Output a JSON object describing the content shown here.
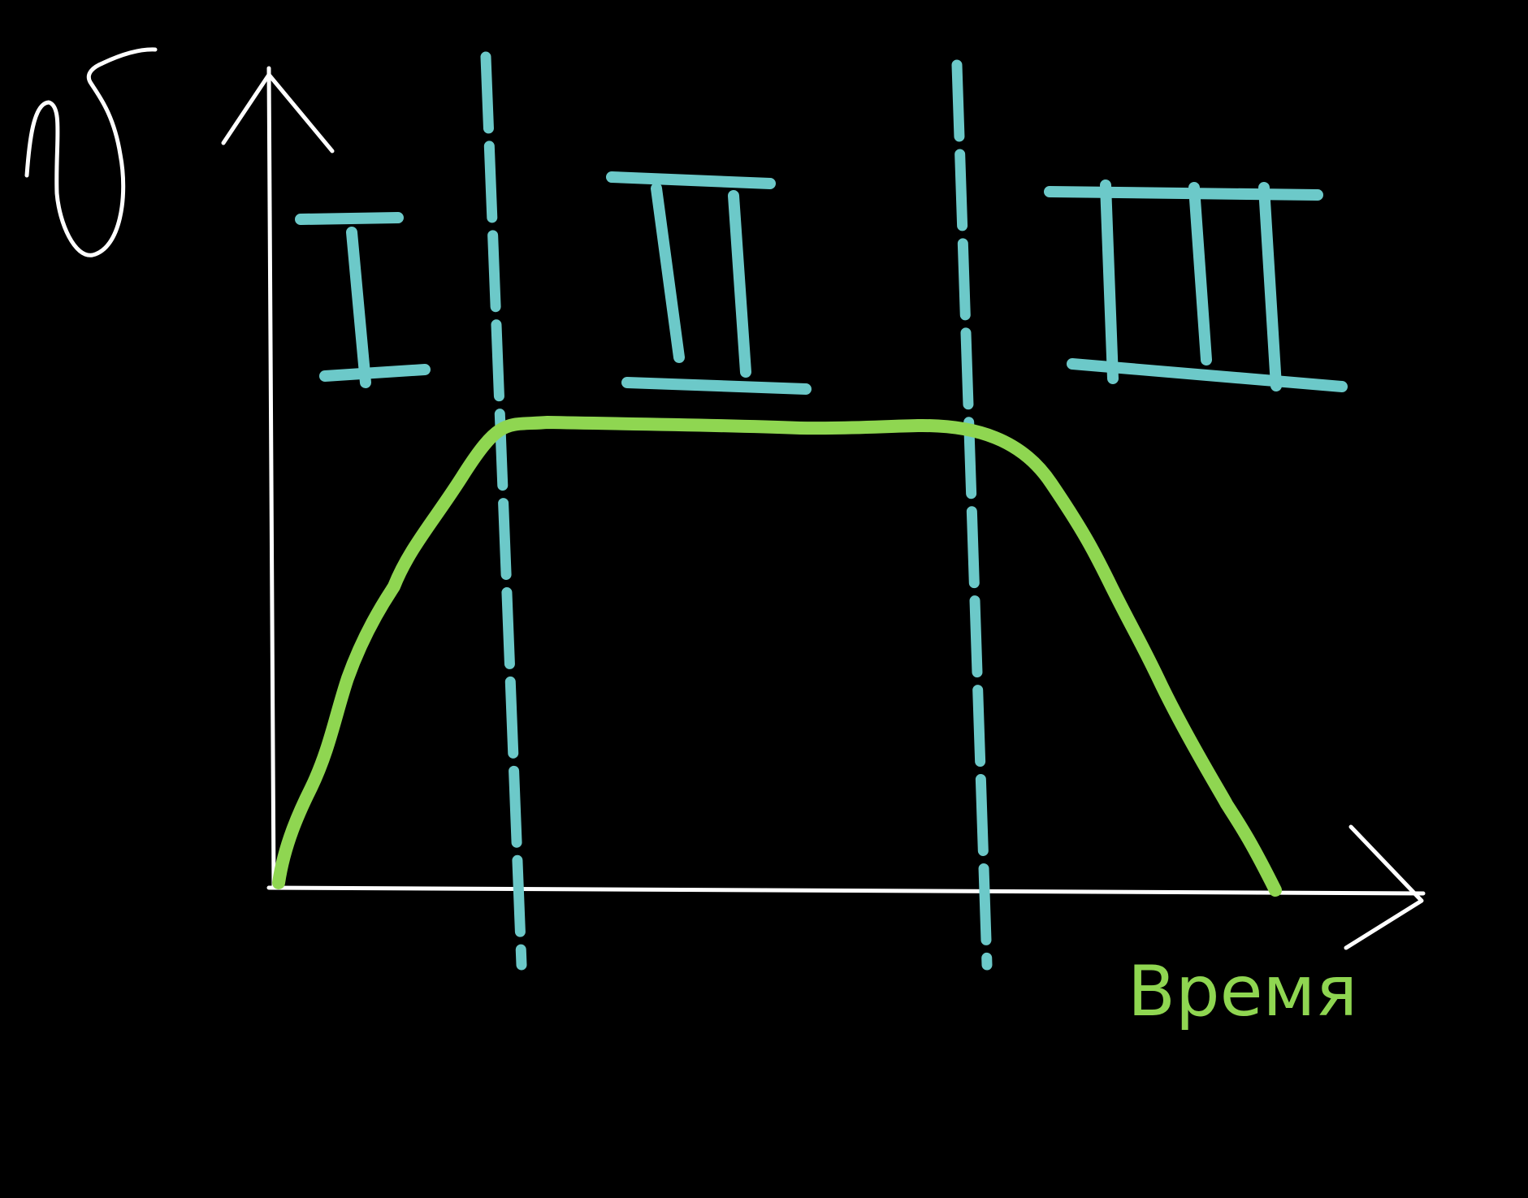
{
  "colors": {
    "background": "#000000",
    "axes": "#ffffff",
    "curve": "#8fd651",
    "stage_markers": "#6cc9c9"
  },
  "y_axis": {
    "symbol_icon": "handwritten-sigma-icon"
  },
  "x_axis": {
    "label": "Время"
  },
  "stages": [
    {
      "numeral": "I"
    },
    {
      "numeral": "II"
    },
    {
      "numeral": "III"
    }
  ],
  "curve": {
    "shape": "rise-plateau-fall"
  }
}
